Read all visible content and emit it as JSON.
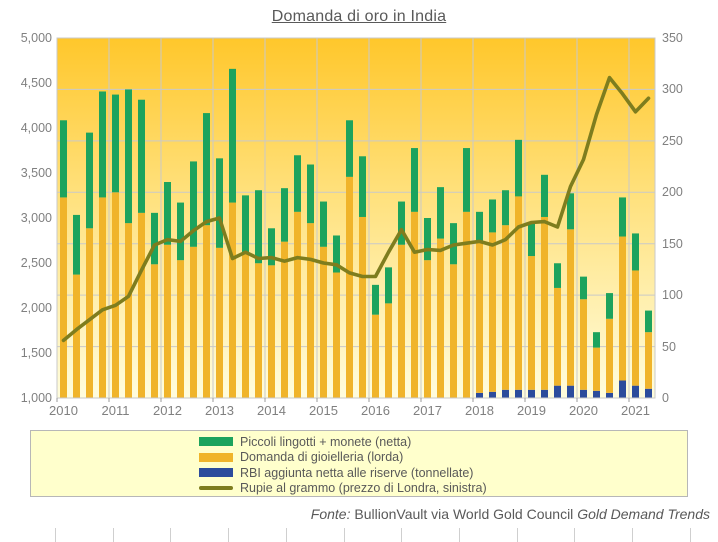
{
  "title": "Domanda di oro in India",
  "source": {
    "fonte_label": "Fonte:",
    "main": " BullionVault via World Gold Council ",
    "publication": "Gold Demand Trends"
  },
  "colors": {
    "coins_green": "#1da35d",
    "jewelry_gold": "#f0b42a",
    "rbi_blue": "#2c4c9c",
    "rupee_line": "#7e7d1e",
    "plot_gradient_top": "#ffc72b",
    "plot_gradient_mid": "#ffe07a",
    "plot_gradient_bottom": "#fffddd",
    "grid": "#c9c9c9",
    "text_gray": "#808080",
    "legend_bg": "#ffffcc"
  },
  "legend": [
    {
      "label": "Piccoli lingotti + monete (netta)",
      "color": "#1da35d",
      "swatch": "box"
    },
    {
      "label": "Domanda di gioielleria (lorda)",
      "color": "#f0b42a",
      "swatch": "box"
    },
    {
      "label": "RBI aggiunta netta alle riserve (tonnellate)",
      "color": "#2c4c9c",
      "swatch": "box"
    },
    {
      "label": "Rupie al grammo (prezzo di Londra, sinistra)",
      "color": "#7e7d1e",
      "swatch": "line"
    }
  ],
  "chart_data": {
    "type": "bar",
    "subtype": "stacked-bars-with-line",
    "title": "Domanda di oro in India",
    "categories": [
      "2010 Q1",
      "2010 Q2",
      "2010 Q3",
      "2010 Q4",
      "2011 Q1",
      "2011 Q2",
      "2011 Q3",
      "2011 Q4",
      "2012 Q1",
      "2012 Q2",
      "2012 Q3",
      "2012 Q4",
      "2013 Q1",
      "2013 Q2",
      "2013 Q3",
      "2013 Q4",
      "2014 Q1",
      "2014 Q2",
      "2014 Q3",
      "2014 Q4",
      "2015 Q1",
      "2015 Q2",
      "2015 Q3",
      "2015 Q4",
      "2016 Q1",
      "2016 Q2",
      "2016 Q3",
      "2016 Q4",
      "2017 Q1",
      "2017 Q2",
      "2017 Q3",
      "2017 Q4",
      "2018 Q1",
      "2018 Q2",
      "2018 Q3",
      "2018 Q4",
      "2019 Q1",
      "2019 Q2",
      "2019 Q3",
      "2019 Q4",
      "2020 Q1",
      "2020 Q2",
      "2020 Q3",
      "2020 Q4",
      "2021 Q1",
      "2021 Q2"
    ],
    "x_years": [
      "2010",
      "2011",
      "2012",
      "2013",
      "2014",
      "2015",
      "2016",
      "2017",
      "2018",
      "2019",
      "2020",
      "2021"
    ],
    "series": [
      {
        "name": "RBI aggiunta netta alle riserve (tonnellate)",
        "role": "bar-bottom",
        "axis": "right",
        "color": "#2c4c9c",
        "values": [
          0,
          0,
          0,
          0,
          0,
          0,
          0,
          0,
          0,
          0,
          0,
          0,
          0,
          0,
          0,
          0,
          0,
          0,
          0,
          0,
          0,
          0,
          0,
          0,
          0,
          0,
          0,
          0,
          0,
          0,
          0,
          0,
          5,
          6,
          8,
          8,
          8,
          8,
          12,
          12,
          8,
          7,
          5,
          17,
          12,
          9
        ]
      },
      {
        "name": "Domanda di gioielleria (lorda)",
        "role": "bar-middle",
        "axis": "right",
        "color": "#f0b42a",
        "values": [
          195,
          120,
          165,
          195,
          200,
          170,
          180,
          130,
          149,
          134,
          147,
          168,
          146,
          190,
          141,
          131,
          129,
          152,
          181,
          170,
          147,
          122,
          215,
          176,
          81,
          92,
          149,
          181,
          134,
          155,
          130,
          181,
          146,
          155,
          160,
          188,
          130,
          168,
          95,
          152,
          88,
          42,
          72,
          140,
          112,
          55
        ]
      },
      {
        "name": "Piccoli lingotti + monete (netta)",
        "role": "bar-top",
        "axis": "right",
        "color": "#1da35d",
        "values": [
          75,
          58,
          93,
          103,
          95,
          130,
          110,
          50,
          61,
          56,
          83,
          109,
          87,
          130,
          56,
          71,
          36,
          52,
          55,
          57,
          44,
          36,
          55,
          59,
          29,
          35,
          42,
          62,
          41,
          50,
          40,
          62,
          30,
          32,
          34,
          55,
          33,
          41,
          24,
          35,
          22,
          15,
          25,
          38,
          36,
          21
        ]
      },
      {
        "name": "Rupie al grammo (prezzo di Londra, sinistra)",
        "role": "line",
        "axis": "left",
        "color": "#7e7d1e",
        "values": [
          1640,
          1760,
          1870,
          1980,
          2030,
          2130,
          2420,
          2700,
          2760,
          2740,
          2860,
          2960,
          3000,
          2550,
          2620,
          2550,
          2560,
          2520,
          2560,
          2540,
          2500,
          2480,
          2390,
          2350,
          2350,
          2620,
          2870,
          2620,
          2650,
          2640,
          2700,
          2720,
          2740,
          2700,
          2760,
          2900,
          2950,
          2960,
          2900,
          3350,
          3650,
          4150,
          4560,
          4380,
          4180,
          4330
        ]
      }
    ],
    "left_axis": {
      "min": 1000,
      "max": 5000,
      "tick_values": [
        5000,
        4500,
        4000,
        3500,
        3000,
        2500,
        2000,
        1500,
        1000
      ],
      "tick_labels": [
        "5,000",
        "4,500",
        "4,000",
        "3,500",
        "3,000",
        "2,500",
        "2,000",
        "1,500",
        "1,000"
      ]
    },
    "right_axis": {
      "min": 0,
      "max": 350,
      "tick_values": [
        350,
        300,
        250,
        200,
        150,
        100,
        50,
        0
      ],
      "tick_labels": [
        "350",
        "300",
        "250",
        "200",
        "150",
        "100",
        "50",
        "0"
      ]
    },
    "grid": "horizontal-every-50-right-units, vertical-at-year-boundaries",
    "legend_position": "bottom"
  }
}
